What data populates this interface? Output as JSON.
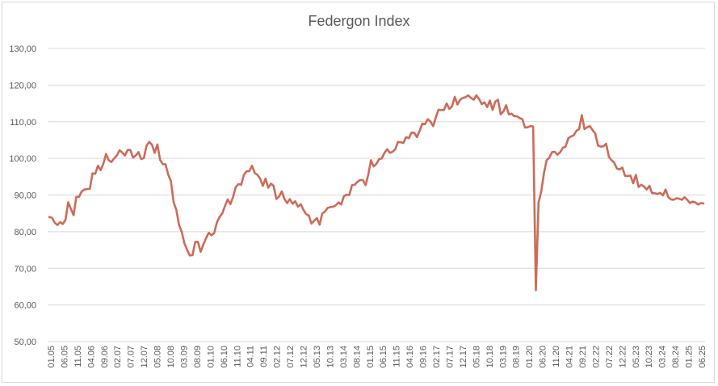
{
  "chart_data": {
    "type": "line",
    "title": "Federgon Index",
    "xlabel": "",
    "ylabel": "",
    "ylim": [
      50,
      130
    ],
    "yticks": [
      "50,00",
      "60,00",
      "70,00",
      "80,00",
      "90,00",
      "100,00",
      "110,00",
      "120,00",
      "130,00"
    ],
    "xticks": [
      "01.05",
      "06.05",
      "11.05",
      "04.06",
      "09.06",
      "02.07",
      "07.07",
      "12.07",
      "05.08",
      "10.08",
      "03.09",
      "08.09",
      "01.10",
      "06.10",
      "11.10",
      "04.11",
      "09.11",
      "02.12",
      "07.12",
      "12.12",
      "05.13",
      "10.13",
      "03.14",
      "08.14",
      "01.15",
      "06.15",
      "11.15",
      "04.16",
      "09.16",
      "02.17",
      "07.17",
      "12.17",
      "05.18",
      "10.18",
      "03.19",
      "08.19",
      "01.20",
      "06.20",
      "11.20",
      "04.21",
      "09.21",
      "02.22",
      "07.22",
      "12.22",
      "05.23",
      "10.23",
      "03.24",
      "08.24",
      "01.25",
      "06.25"
    ],
    "grid": true,
    "legend": "none",
    "line_color": "#cc6b58",
    "series": [
      {
        "values": [
          84,
          83.8,
          82.5,
          81.8,
          82.6,
          82.1,
          83.2,
          88,
          86.2,
          84.5,
          89.5,
          89.5,
          91,
          91.5,
          91.6,
          91.7,
          95.9,
          95.8,
          98,
          96.8,
          98.5,
          101.2,
          99.5,
          99,
          100,
          100.8,
          102.2,
          101.6,
          100.8,
          102.3,
          102.3,
          100.2,
          100.8,
          101.7,
          99.8,
          100.1,
          103.5,
          104.5,
          103.7,
          101.5,
          103.8,
          99.6,
          98.4,
          98.4,
          95.6,
          93.8,
          88,
          86,
          81.8,
          80,
          76.8,
          75,
          73.5,
          73.6,
          77.2,
          77.2,
          74.5,
          76.5,
          78.2,
          79.7,
          79,
          79.6,
          82.5,
          84,
          85,
          87,
          88.8,
          87.5,
          89.5,
          92.2,
          93,
          92.8,
          95.5,
          96.5,
          96.5,
          98,
          96,
          95.5,
          94.5,
          92.5,
          94.5,
          92,
          93.1,
          92.5,
          88.9,
          89.6,
          91,
          88.9,
          87.8,
          88.9,
          87.6,
          88.3,
          86.8,
          87.5,
          86,
          84.8,
          84.4,
          82.2,
          83,
          83.7,
          81.9,
          85,
          85.5,
          86.5,
          86.7,
          86.8,
          87.2,
          88,
          87.4,
          89.7,
          90.1,
          90,
          92.7,
          92.8,
          93.6,
          94.1,
          94.1,
          92.7,
          95.5,
          99.5,
          97.8,
          98.5,
          99.8,
          100,
          101.5,
          102.5,
          101.5,
          101.8,
          102.5,
          104.5,
          104.4,
          104.2,
          105.8,
          105.5,
          107,
          107,
          105.8,
          107.5,
          109.5,
          109.3,
          110.7,
          110.1,
          108.8,
          111.2,
          113.3,
          113.2,
          113.2,
          115,
          113.5,
          114.2,
          116.8,
          114.7,
          116,
          116.5,
          116.7,
          117.2,
          116.5,
          116,
          117.2,
          116.2,
          114.8,
          115.3,
          114,
          115.8,
          113.2,
          115.5,
          116,
          112,
          112.8,
          114.5,
          112,
          112.2,
          111.5,
          111.5,
          111,
          110.7,
          108.4,
          108.5,
          108.8,
          108.7,
          64,
          88,
          91,
          96,
          99.5,
          100.2,
          101.7,
          101.8,
          101,
          101.7,
          102.9,
          103.2,
          105.5,
          106,
          106.3,
          107.5,
          108,
          111.8,
          108,
          108.5,
          108.8,
          107.7,
          106.7,
          103.5,
          103.2,
          103.3,
          104,
          100.5,
          99.5,
          98.8,
          97.2,
          97,
          97.5,
          95.2,
          95.2,
          95.3,
          93.2,
          95.5,
          92.2,
          92.8,
          92.3,
          91.5,
          92.5,
          90.5,
          90.5,
          90.3,
          90.6,
          89.9,
          91.5,
          89.4,
          88.8,
          88.7,
          89.1,
          89,
          88.7,
          89.4,
          88.7,
          87.8,
          88.2,
          88,
          87.4,
          87.8,
          87.7
        ]
      }
    ]
  }
}
